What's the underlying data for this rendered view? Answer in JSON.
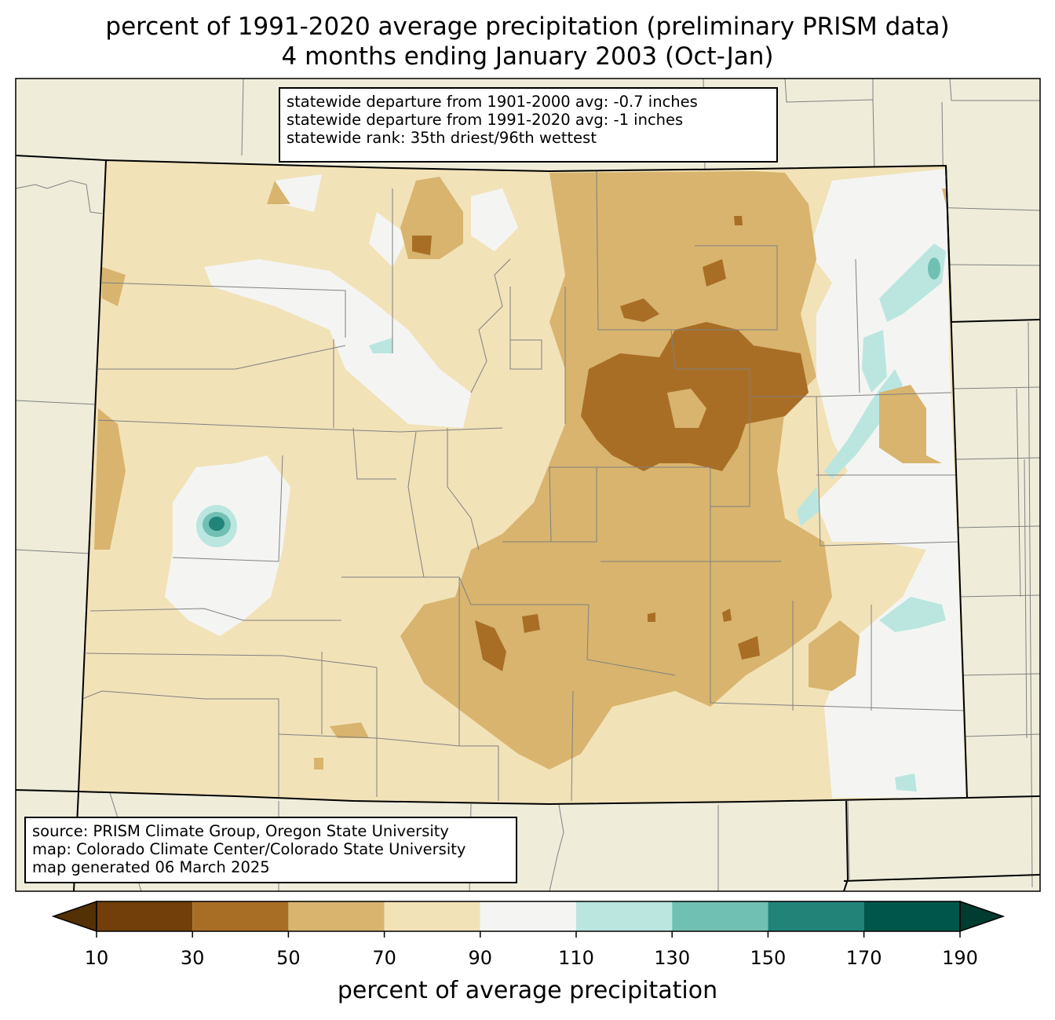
{
  "title": {
    "line1": "percent of 1991-2020 average precipitation (preliminary PRISM data)",
    "line2": "4 months ending January 2003 (Oct-Jan)"
  },
  "stats": {
    "line1": "statewide departure from 1901-2000 avg: -0.7 inches",
    "line2": "statewide departure from 1991-2020 avg: -1 inches",
    "line3": "statewide rank: 35th driest/96th wettest"
  },
  "source": {
    "line1": "source: PRISM Climate Group, Oregon State University",
    "line2": "map: Colorado Climate Center/Colorado State University",
    "line3": "map generated 06 March 2025"
  },
  "colorbar": {
    "label": "percent of average precipitation",
    "ticks": [
      "10",
      "30",
      "50",
      "70",
      "90",
      "110",
      "130",
      "150",
      "170",
      "190"
    ],
    "bins": [
      {
        "range": "<10",
        "color": "#543005"
      },
      {
        "range": "10-30",
        "color": "#723f0a"
      },
      {
        "range": "30-50",
        "color": "#a96e26"
      },
      {
        "range": "50-70",
        "color": "#d8b46e"
      },
      {
        "range": "70-90",
        "color": "#f2e2b8"
      },
      {
        "range": "90-110",
        "color": "#f4f5f3"
      },
      {
        "range": "110-130",
        "color": "#bbe6e0"
      },
      {
        "range": "130-150",
        "color": "#70c0b3"
      },
      {
        "range": "150-170",
        "color": "#228479"
      },
      {
        "range": "170-190",
        "color": "#01564b"
      },
      {
        "range": ">190",
        "color": "#003c30"
      }
    ]
  },
  "map_colors": {
    "land_outside": "#efedda",
    "county_lines": "#808080",
    "state_lines": "#000000"
  }
}
